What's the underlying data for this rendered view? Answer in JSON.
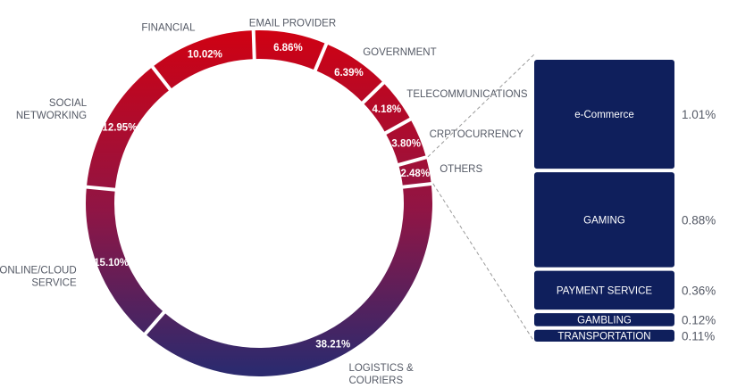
{
  "chart_data": {
    "type": "pie",
    "slices": [
      {
        "label": [
          "LOGISTICS &",
          "COURIERS"
        ],
        "value": 38.21,
        "display": "38.21%"
      },
      {
        "label": [
          "ONLINE/CLOUD",
          "SERVICE"
        ],
        "value": 15.1,
        "display": "15.10%"
      },
      {
        "label": [
          "SOCIAL",
          "NETWORKING"
        ],
        "value": 12.95,
        "display": "12.95%"
      },
      {
        "label": [
          "FINANCIAL"
        ],
        "value": 10.02,
        "display": "10.02%"
      },
      {
        "label": [
          "EMAIL PROVIDER"
        ],
        "value": 6.86,
        "display": "6.86%"
      },
      {
        "label": [
          "GOVERNMENT"
        ],
        "value": 6.39,
        "display": "6.39%"
      },
      {
        "label": [
          "TELECOMMUNICATIONS"
        ],
        "value": 4.18,
        "display": "4.18%"
      },
      {
        "label": [
          "CRPTOCURRENCY"
        ],
        "value": 3.8,
        "display": "3.80%"
      },
      {
        "label": [
          "OTHERS"
        ],
        "value": 2.48,
        "display": "2.48%"
      }
    ],
    "others_breakdown": {
      "type": "bar",
      "categories": [
        "e-Commerce",
        "GAMING",
        "PAYMENT SERVICE",
        "GAMBLING",
        "TRANSPORTATION"
      ],
      "values": [
        1.01,
        0.88,
        0.36,
        0.12,
        0.11
      ],
      "display": [
        "1.01%",
        "0.88%",
        "0.36%",
        "0.12%",
        "0.11%"
      ]
    },
    "colors": {
      "gradient_top": "#d4000f",
      "gradient_mid": "#8f1545",
      "gradient_bottom": "#2c2a6e",
      "breakdown_box": "#0f1f5c",
      "separator": "#ffffff",
      "text": "#555a66",
      "connector": "#9a9a9a"
    }
  }
}
